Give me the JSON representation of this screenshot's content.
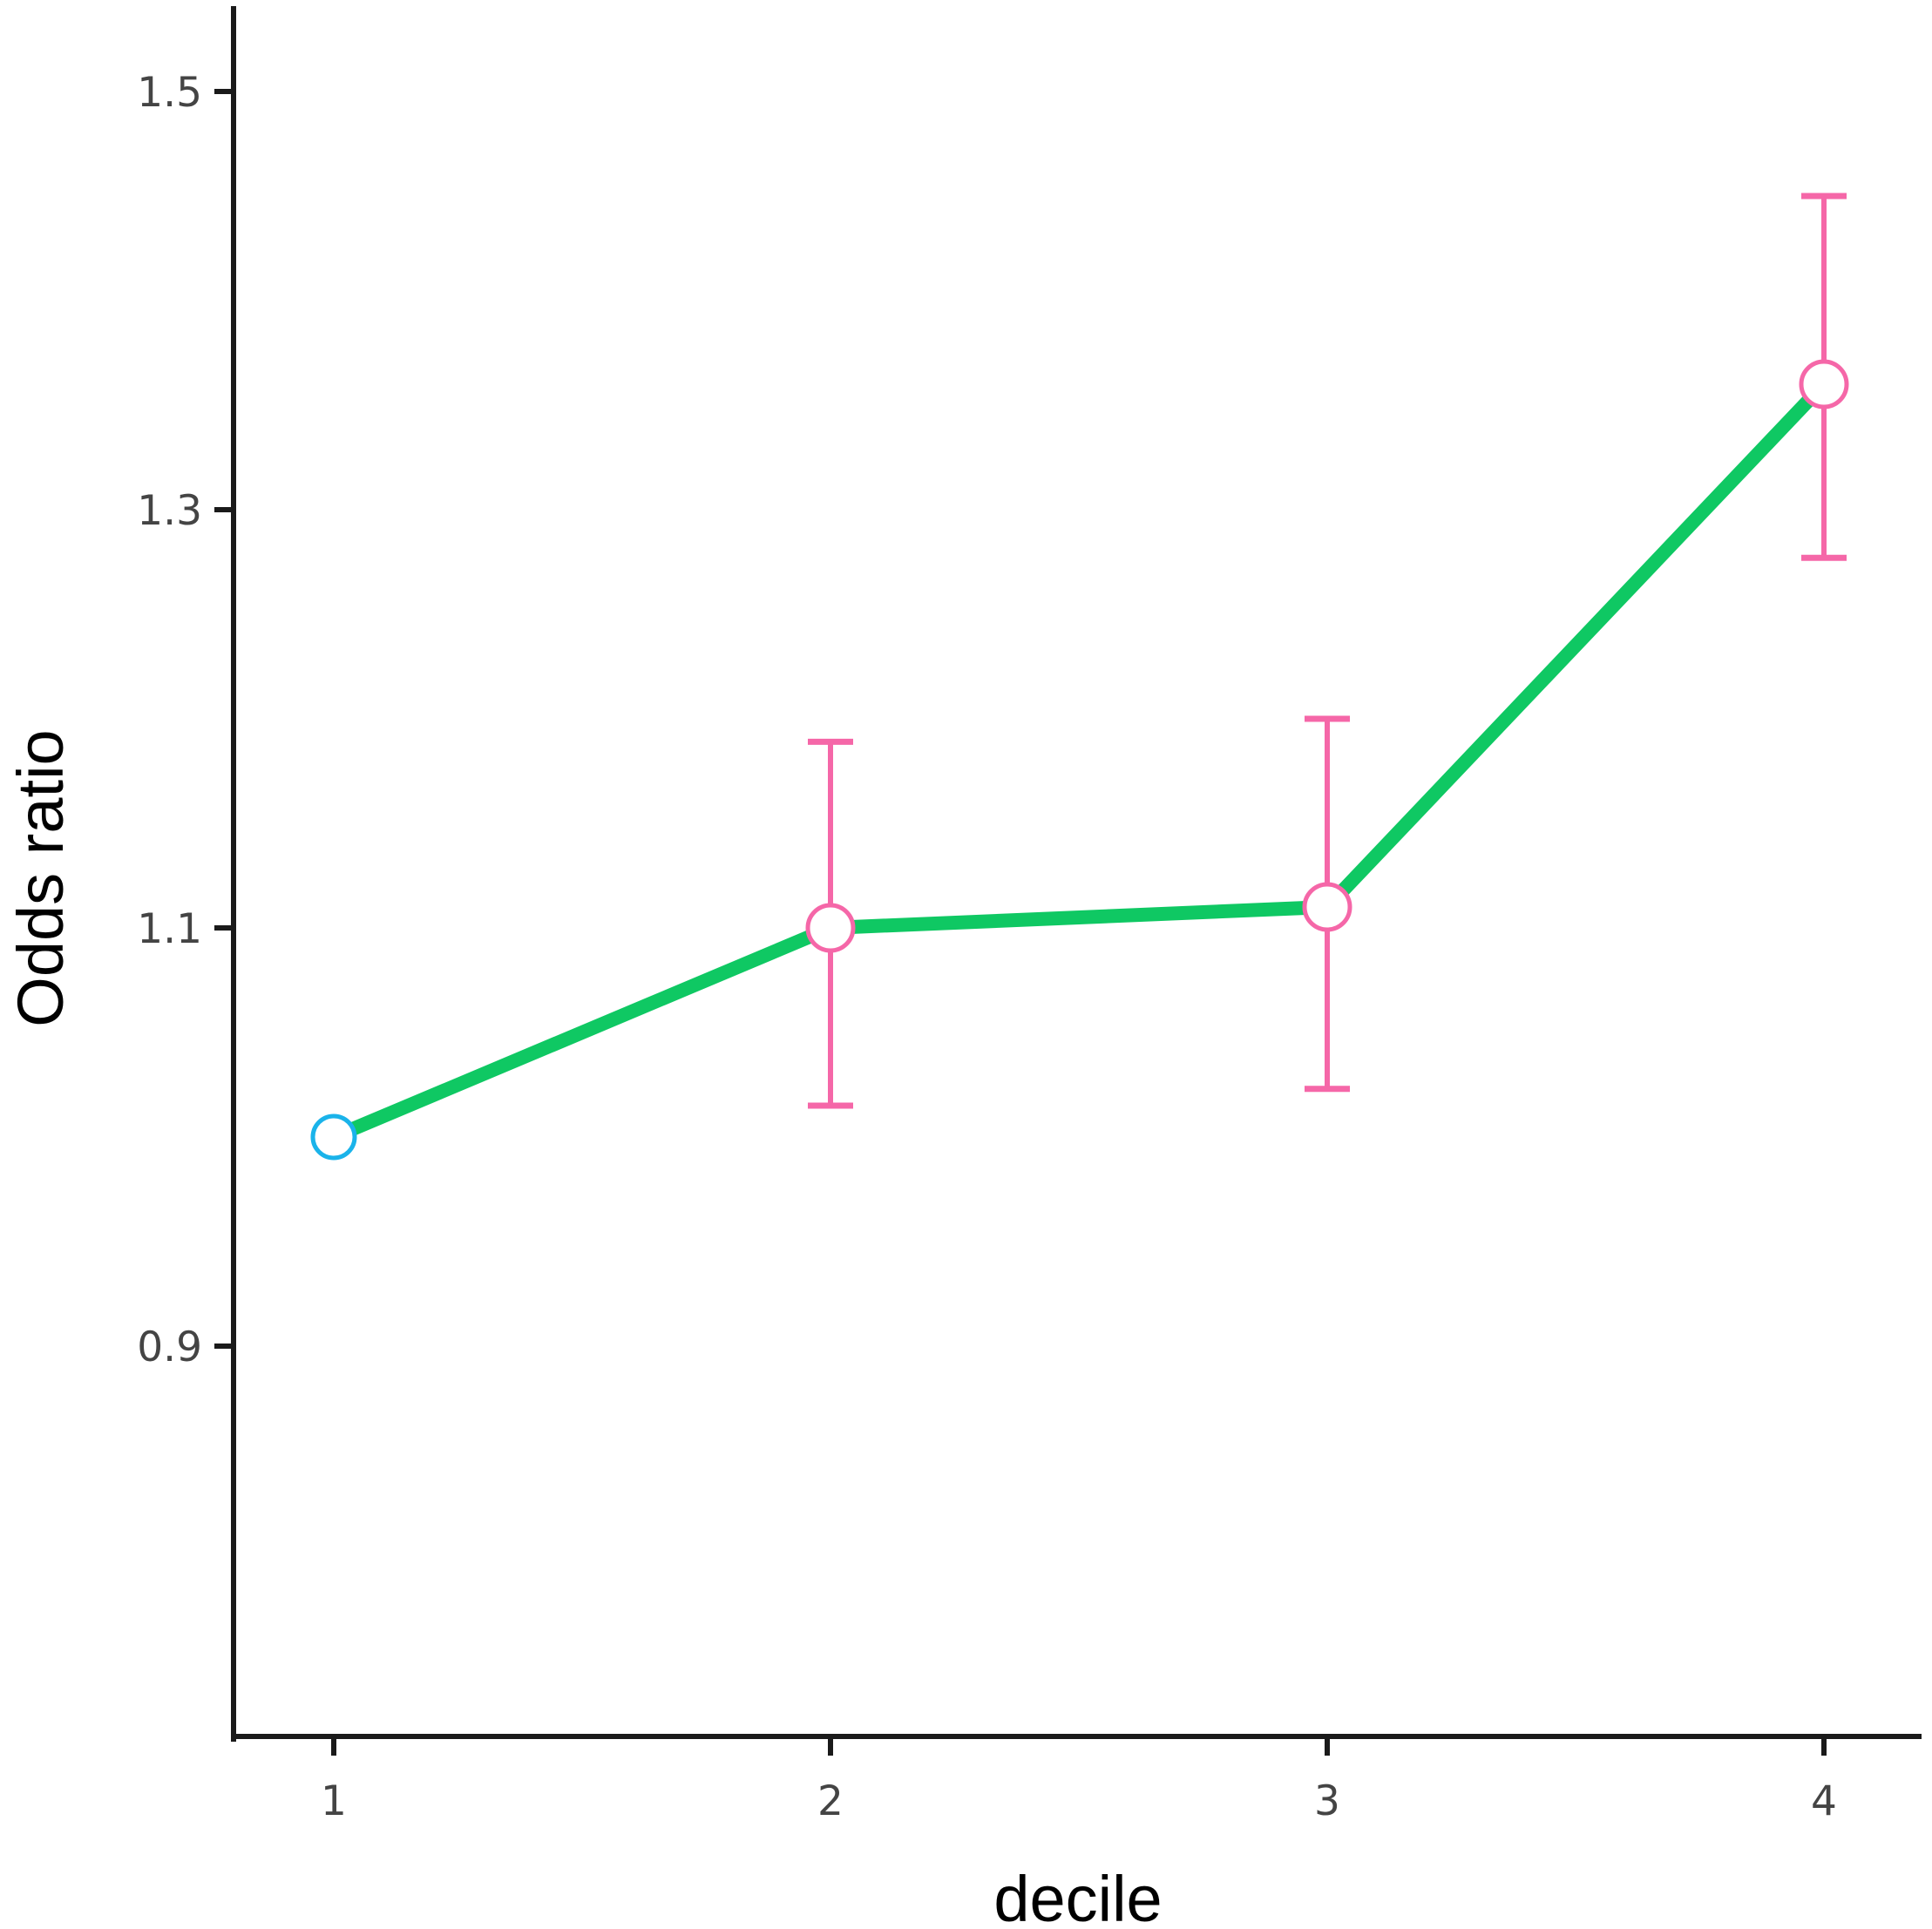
{
  "chart_data": {
    "type": "line",
    "title": "",
    "xlabel": "decile",
    "ylabel": "Odds ratio",
    "x": [
      1,
      2,
      3,
      4
    ],
    "x_tick_labels": [
      "1",
      "2",
      "3",
      "4"
    ],
    "y_ticks": [
      0.9,
      1.1,
      1.3,
      1.5
    ],
    "y_tick_labels": [
      "0.9",
      "1.1",
      "1.3",
      "1.5"
    ],
    "ylim": [
      0.71,
      1.535
    ],
    "xlim": [
      0.8,
      4.2
    ],
    "grid": false,
    "legend": "none",
    "series": [
      {
        "values": [
          1.0,
          1.1,
          1.11,
          1.36
        ],
        "ci_lower": [
          null,
          1.015,
          1.023,
          1.277
        ],
        "ci_upper": [
          null,
          1.189,
          1.2,
          1.45
        ]
      }
    ]
  },
  "colors": {
    "line": "#0fc863",
    "error_bars": "#f567a8",
    "reference_marker": "#1ab3ea",
    "axis": "#1a1a1a",
    "tick_text": "#444444"
  }
}
